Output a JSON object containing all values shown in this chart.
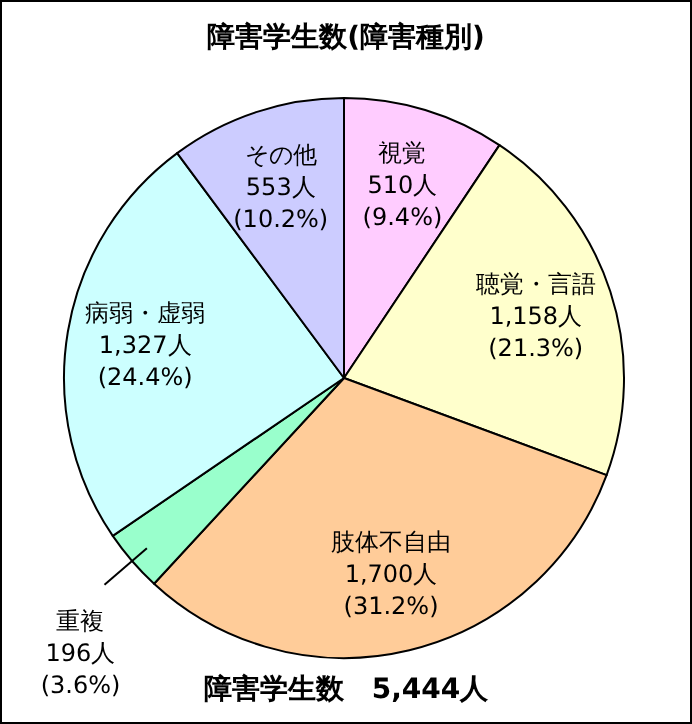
{
  "chart_data": {
    "type": "pie",
    "title": "障害学生数(障害種別)",
    "categories": [
      "視覚",
      "聴覚・言語",
      "肢体不自由",
      "重複",
      "病弱・虚弱",
      "その他"
    ],
    "values": [
      510,
      1158,
      1700,
      196,
      1327,
      553
    ],
    "value_labels": [
      "510人 (9.4%)",
      "1,158人 (21.3%)",
      "1,700人 (31.2%)",
      "196人 (3.6%)",
      "1,327人 (24.4%)",
      "553人 (10.2%)"
    ],
    "colors": [
      "#ffccff",
      "#ffffcc",
      "#ffcc99",
      "#99ffcc",
      "#ccffff",
      "#ccccff"
    ],
    "annotations": [
      "障害学生数　5,444人"
    ]
  }
}
